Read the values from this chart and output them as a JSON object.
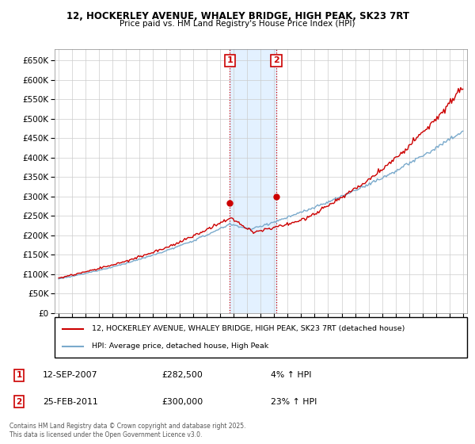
{
  "title": "12, HOCKERLEY AVENUE, WHALEY BRIDGE, HIGH PEAK, SK23 7RT",
  "subtitle": "Price paid vs. HM Land Registry's House Price Index (HPI)",
  "sale1_date": "12-SEP-2007",
  "sale1_price": 282500,
  "sale1_pct": "4%",
  "sale2_date": "25-FEB-2011",
  "sale2_price": 300000,
  "sale2_pct": "23%",
  "legend_line1": "12, HOCKERLEY AVENUE, WHALEY BRIDGE, HIGH PEAK, SK23 7RT (detached house)",
  "legend_line2": "HPI: Average price, detached house, High Peak",
  "footer": "Contains HM Land Registry data © Crown copyright and database right 2025.\nThis data is licensed under the Open Government Licence v3.0.",
  "line_color": "#cc0000",
  "hpi_color": "#7aaacc",
  "ylim": [
    0,
    680000
  ],
  "yticks": [
    0,
    50000,
    100000,
    150000,
    200000,
    250000,
    300000,
    350000,
    400000,
    450000,
    500000,
    550000,
    600000,
    650000
  ],
  "sale1_x": 2007.7,
  "sale2_x": 2011.15,
  "shading_color": "#ddeeff",
  "annotation_box_color": "#cc0000"
}
